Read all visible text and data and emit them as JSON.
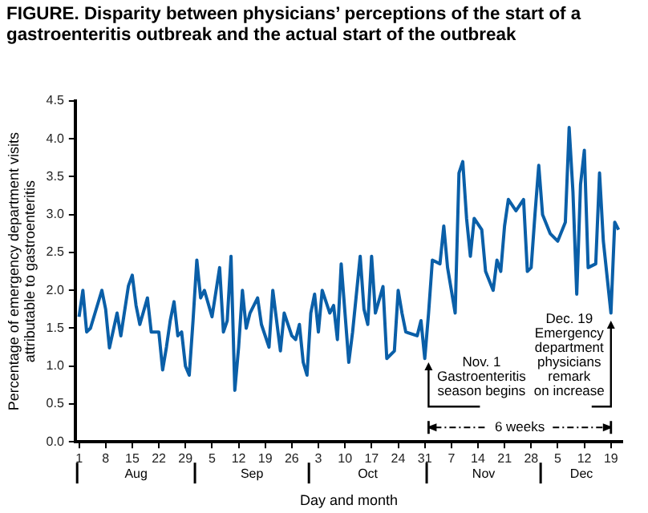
{
  "chart_data": {
    "type": "line",
    "title": "FIGURE. Disparity between physicians’ perceptions of the start of a gastroenteritis outbreak and the actual start of the outbreak",
    "xlabel": "Day and month",
    "ylabel": "Percentage of emergency department visits\nattributable to gastroenteritis",
    "x": [
      "--08-01",
      "--08-02",
      "--08-03",
      "--08-04",
      "--08-07",
      "--08-08",
      "--08-09",
      "--08-11",
      "--08-12",
      "--08-14",
      "--08-15",
      "--08-16",
      "--08-17",
      "--08-19",
      "--08-20",
      "--08-22",
      "--08-23",
      "--08-24",
      "--08-25",
      "--08-26",
      "--08-27",
      "--08-28",
      "--08-29",
      "--08-30",
      "--08-31",
      "--09-01",
      "--09-02",
      "--09-03",
      "--09-05",
      "--09-07",
      "--09-08",
      "--09-09",
      "--09-10",
      "--09-11",
      "--09-12",
      "--09-13",
      "--09-14",
      "--09-15",
      "--09-17",
      "--09-18",
      "--09-20",
      "--09-21",
      "--09-23",
      "--09-24",
      "--09-26",
      "--09-27",
      "--09-28",
      "--09-29",
      "--09-30",
      "--10-01",
      "--10-02",
      "--10-03",
      "--10-04",
      "--10-06",
      "--10-07",
      "--10-08",
      "--10-09",
      "--10-11",
      "--10-12",
      "--10-14",
      "--10-15",
      "--10-16",
      "--10-17",
      "--10-18",
      "--10-20",
      "--10-21",
      "--10-23",
      "--10-24",
      "--10-25",
      "--10-26",
      "--10-29",
      "--10-30",
      "--10-31",
      "--11-01",
      "--11-02",
      "--11-04",
      "--11-05",
      "--11-06",
      "--11-07",
      "--11-08",
      "--11-09",
      "--11-10",
      "--11-11",
      "--11-12",
      "--11-13",
      "--11-15",
      "--11-16",
      "--11-18",
      "--11-19",
      "--11-20",
      "--11-21",
      "--11-22",
      "--11-24",
      "--11-26",
      "--11-27",
      "--11-28",
      "--11-29",
      "--11-30",
      "--12-01",
      "--12-03",
      "--12-05",
      "--12-07",
      "--12-08",
      "--12-09",
      "--12-10",
      "--12-11",
      "--12-12",
      "--12-13",
      "--12-15",
      "--12-16",
      "--12-17",
      "--12-19",
      "--12-20",
      "--12-21"
    ],
    "series": [
      {
        "color": "#0a5fa8",
        "values": [
          1.65,
          2.0,
          1.45,
          1.5,
          2.0,
          1.75,
          1.24,
          1.7,
          1.4,
          2.06,
          2.2,
          1.8,
          1.55,
          1.9,
          1.45,
          1.45,
          0.95,
          1.25,
          1.6,
          1.85,
          1.4,
          1.45,
          1.0,
          0.88,
          1.6,
          2.4,
          1.9,
          2.0,
          1.65,
          2.3,
          1.45,
          1.6,
          2.45,
          0.68,
          1.25,
          2.0,
          1.5,
          1.7,
          1.9,
          1.55,
          1.25,
          2.0,
          1.2,
          1.7,
          1.4,
          1.35,
          1.55,
          1.05,
          0.88,
          1.7,
          1.95,
          1.45,
          2.0,
          1.7,
          1.8,
          1.35,
          2.35,
          1.05,
          1.45,
          2.45,
          1.75,
          1.55,
          2.45,
          1.7,
          2.05,
          1.1,
          1.2,
          2.0,
          1.7,
          1.45,
          1.4,
          1.6,
          1.1,
          1.7,
          2.4,
          2.35,
          2.85,
          2.3,
          2.0,
          1.7,
          3.55,
          3.7,
          2.95,
          2.45,
          2.95,
          2.8,
          2.25,
          2.0,
          2.4,
          2.25,
          2.85,
          3.2,
          3.05,
          3.2,
          2.25,
          2.3,
          3.0,
          3.65,
          3.0,
          2.75,
          2.65,
          2.9,
          4.15,
          3.3,
          1.95,
          3.4,
          3.85,
          2.3,
          2.35,
          3.55,
          2.65,
          1.7,
          2.9,
          2.8
        ]
      }
    ],
    "xlim": [
      "--07-31",
      "--12-22"
    ],
    "xticks": [
      {
        "value": "--08-01",
        "label": "1"
      },
      {
        "value": "--08-08",
        "label": "8"
      },
      {
        "value": "--08-15",
        "label": "15"
      },
      {
        "value": "--08-22",
        "label": "22"
      },
      {
        "value": "--08-29",
        "label": "29"
      },
      {
        "value": "--09-05",
        "label": "5"
      },
      {
        "value": "--09-12",
        "label": "12"
      },
      {
        "value": "--09-19",
        "label": "19"
      },
      {
        "value": "--09-26",
        "label": "26"
      },
      {
        "value": "--10-03",
        "label": "3"
      },
      {
        "value": "--10-10",
        "label": "10"
      },
      {
        "value": "--10-17",
        "label": "17"
      },
      {
        "value": "--10-24",
        "label": "24"
      },
      {
        "value": "--10-31",
        "label": "31"
      },
      {
        "value": "--11-07",
        "label": "7"
      },
      {
        "value": "--11-14",
        "label": "14"
      },
      {
        "value": "--11-21",
        "label": "21"
      },
      {
        "value": "--11-28",
        "label": "28"
      },
      {
        "value": "--12-05",
        "label": "5"
      },
      {
        "value": "--12-12",
        "label": "12"
      },
      {
        "value": "--12-19",
        "label": "19"
      }
    ],
    "ylim": [
      0,
      4.5
    ],
    "yticks": [
      {
        "value": 0,
        "label": "0.0"
      },
      {
        "value": 0.5,
        "label": "0.5"
      },
      {
        "value": 1,
        "label": "1.0"
      },
      {
        "value": 1.5,
        "label": "1.5"
      },
      {
        "value": 2,
        "label": "2.0"
      },
      {
        "value": 2.5,
        "label": "2.5"
      },
      {
        "value": 3,
        "label": "3.0"
      },
      {
        "value": 3.5,
        "label": "3.5"
      },
      {
        "value": 4,
        "label": "4.0"
      },
      {
        "value": 4.5,
        "label": "4.5"
      }
    ],
    "annotations": [
      "Aug",
      "Sep",
      "Oct",
      "Nov",
      "Dec",
      {
        "text": "Nov. 1\nGastroenteritis\nseason begins",
        "x": "--11-01",
        "y": 1.05
      },
      {
        "text": "Dec. 19\nEmergency\ndepartment\nphysicians\nremark\non increase",
        "x": "--12-19",
        "y": 1.6
      },
      "6 weeks"
    ],
    "grid": false,
    "legend": false,
    "marker": "none",
    "line_style": "solid"
  }
}
